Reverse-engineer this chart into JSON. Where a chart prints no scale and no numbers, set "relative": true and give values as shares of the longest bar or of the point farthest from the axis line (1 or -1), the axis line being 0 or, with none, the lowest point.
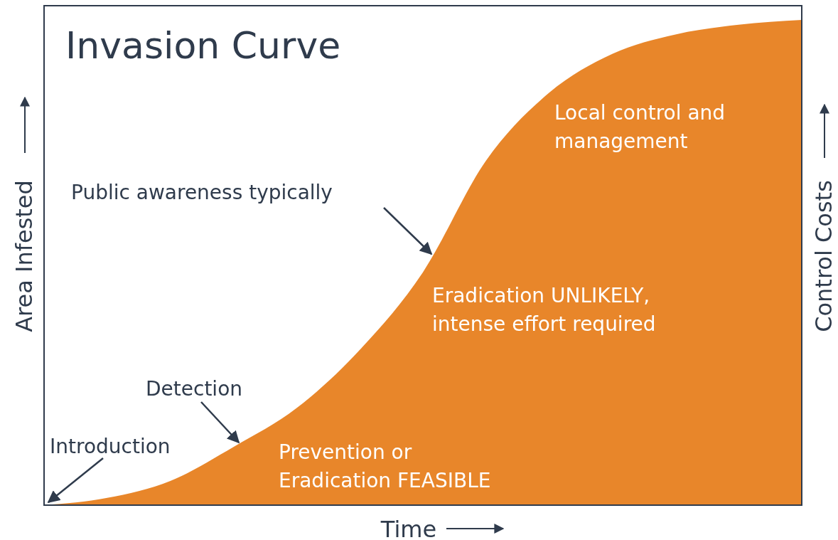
{
  "chart_data": {
    "type": "area",
    "title": "Invasion Curve",
    "xlabel": "Time",
    "ylabel": "Area Infested",
    "y2label": "Control Costs",
    "relative": true,
    "categories": [
      null,
      null,
      null,
      null,
      null,
      null,
      null,
      null,
      null,
      null,
      null,
      null,
      null
    ],
    "series": [
      {
        "color": "#e8862a",
        "values": [
          0,
          0.015,
          0.05,
          0.12,
          0.2,
          0.32,
          0.48,
          0.71,
          0.85,
          0.93,
          0.97,
          0.99,
          1.0
        ]
      }
    ],
    "annotations": [
      "Introduction",
      "Detection",
      "Public awareness typically",
      "Prevention or\nEradication FEASIBLE",
      "Eradication UNLIKELY,\nintense effort required",
      "Local control and\nmanagement"
    ]
  }
}
